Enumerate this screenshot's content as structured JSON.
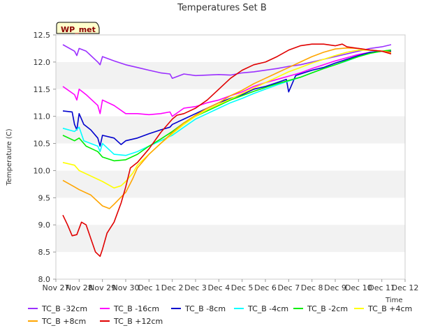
{
  "chart_data": {
    "type": "line",
    "title": "Temperatures Set B",
    "xlabel": "Time",
    "ylabel": "Temperature (C)",
    "badge": "WP_met",
    "x_tick_labels": [
      "Nov 27",
      "Nov 28",
      "Nov 29",
      "Nov 30",
      "Dec 1",
      "Dec 2",
      "Dec 3",
      "Dec 4",
      "Dec 5",
      "Dec 6",
      "Dec 7",
      "Dec 8",
      "Dec 9",
      "Dec 10",
      "Dec 11",
      "Dec 12"
    ],
    "xlim": [
      0,
      15
    ],
    "ylim": [
      8.0,
      12.5
    ],
    "y_ticks": [
      8.0,
      8.5,
      9.0,
      9.5,
      10.0,
      10.5,
      11.0,
      11.5,
      12.0,
      12.5
    ],
    "grid": "horizontal bands",
    "legend_position": "bottom",
    "series": [
      {
        "name": "TC_B -32cm",
        "color": "#9b30ff",
        "x": [
          0.3,
          0.8,
          0.9,
          1.0,
          1.3,
          1.8,
          1.9,
          2.0,
          2.5,
          3.0,
          3.5,
          4.0,
          4.5,
          4.9,
          5.0,
          5.5,
          6.0,
          6.5,
          7.0,
          7.5,
          8.0,
          8.5,
          9.0,
          9.5,
          10.0,
          10.5,
          11.0,
          11.5,
          12.0,
          12.5,
          13.0,
          13.5,
          14.0,
          14.4
        ],
        "y": [
          12.32,
          12.2,
          12.12,
          12.25,
          12.2,
          12.0,
          11.95,
          12.1,
          12.02,
          11.95,
          11.9,
          11.85,
          11.8,
          11.78,
          11.7,
          11.78,
          11.75,
          11.76,
          11.77,
          11.76,
          11.8,
          11.82,
          11.85,
          11.88,
          11.92,
          11.95,
          12.0,
          12.05,
          12.1,
          12.15,
          12.2,
          12.25,
          12.28,
          12.32
        ]
      },
      {
        "name": "TC_B -16cm",
        "color": "#ff00ff",
        "x": [
          0.3,
          0.8,
          0.9,
          1.0,
          1.3,
          1.8,
          1.9,
          2.0,
          2.5,
          3.0,
          3.5,
          4.0,
          4.5,
          4.9,
          5.0,
          5.5,
          6.0,
          6.5,
          7.0,
          7.5,
          8.0,
          8.5,
          9.0,
          9.5,
          10.0,
          10.5,
          11.0,
          11.5,
          12.0,
          12.5,
          13.0,
          13.5,
          14.0,
          14.4
        ],
        "y": [
          11.55,
          11.4,
          11.3,
          11.5,
          11.4,
          11.2,
          11.05,
          11.3,
          11.2,
          11.05,
          11.05,
          11.03,
          11.05,
          11.08,
          11.0,
          11.15,
          11.18,
          11.25,
          11.3,
          11.38,
          11.45,
          11.55,
          11.62,
          11.68,
          11.74,
          11.8,
          11.88,
          11.95,
          12.02,
          12.08,
          12.14,
          12.18,
          12.2,
          12.22
        ]
      },
      {
        "name": "TC_B -8cm",
        "color": "#0000cd",
        "x": [
          0.3,
          0.7,
          0.8,
          0.9,
          1.0,
          1.2,
          1.5,
          1.8,
          1.9,
          2.0,
          2.5,
          2.8,
          3.0,
          3.5,
          4.0,
          4.5,
          4.9,
          5.0,
          5.5,
          6.0,
          6.5,
          7.0,
          7.5,
          8.0,
          8.5,
          9.0,
          9.5,
          9.9,
          10.0,
          10.3,
          10.5,
          11.0,
          11.5,
          12.0,
          12.5,
          13.0,
          13.5,
          14.0,
          14.4
        ],
        "y": [
          11.1,
          11.08,
          10.85,
          10.75,
          11.05,
          10.85,
          10.75,
          10.6,
          10.45,
          10.65,
          10.6,
          10.48,
          10.55,
          10.6,
          10.68,
          10.75,
          10.8,
          10.85,
          10.95,
          11.05,
          11.15,
          11.25,
          11.33,
          11.4,
          11.5,
          11.55,
          11.62,
          11.68,
          11.45,
          11.75,
          11.78,
          11.85,
          11.9,
          11.98,
          12.05,
          12.12,
          12.18,
          12.2,
          12.2
        ]
      },
      {
        "name": "TC_B -4cm",
        "color": "#00ffff",
        "x": [
          0.3,
          0.8,
          1.0,
          1.2,
          1.5,
          1.8,
          1.9,
          2.0,
          2.5,
          3.0,
          3.5,
          4.0,
          4.5,
          5.0,
          5.5,
          6.0,
          6.5,
          7.0,
          7.5,
          8.0,
          8.5,
          9.0,
          9.5,
          10.0,
          10.5,
          11.0,
          11.5,
          12.0,
          12.5,
          13.0,
          13.5,
          14.0,
          14.4
        ],
        "y": [
          10.78,
          10.72,
          10.8,
          10.55,
          10.5,
          10.45,
          10.35,
          10.5,
          10.3,
          10.28,
          10.35,
          10.45,
          10.55,
          10.65,
          10.8,
          10.95,
          11.05,
          11.15,
          11.25,
          11.33,
          11.42,
          11.5,
          11.58,
          11.65,
          11.72,
          11.8,
          11.88,
          11.95,
          12.02,
          12.1,
          12.16,
          12.2,
          12.22
        ]
      },
      {
        "name": "TC_B -2cm",
        "color": "#00ee00",
        "x": [
          0.3,
          0.8,
          1.0,
          1.3,
          1.8,
          2.0,
          2.5,
          3.0,
          3.5,
          4.0,
          4.5,
          5.0,
          5.5,
          6.0,
          6.5,
          7.0,
          7.5,
          8.0,
          8.5,
          9.0,
          9.5,
          10.0,
          10.5,
          11.0,
          11.5,
          12.0,
          12.5,
          13.0,
          13.5,
          14.0,
          14.4
        ],
        "y": [
          10.65,
          10.55,
          10.6,
          10.45,
          10.35,
          10.25,
          10.18,
          10.2,
          10.3,
          10.45,
          10.58,
          10.72,
          10.88,
          11.0,
          11.1,
          11.2,
          11.3,
          11.38,
          11.46,
          11.53,
          11.6,
          11.66,
          11.72,
          11.8,
          11.88,
          11.95,
          12.03,
          12.1,
          12.16,
          12.2,
          12.22
        ]
      },
      {
        "name": "TC_B +4cm",
        "color": "#ffff00",
        "x": [
          0.3,
          0.8,
          1.0,
          1.5,
          2.0,
          2.5,
          2.8,
          3.0,
          3.3,
          3.5,
          4.0,
          4.5,
          5.0,
          5.5,
          6.0,
          6.5,
          7.0,
          7.5,
          8.0,
          8.5,
          9.0,
          9.5,
          10.0,
          10.5,
          11.0,
          11.5,
          12.0,
          12.5,
          13.0,
          13.5,
          14.0,
          14.4
        ],
        "y": [
          10.15,
          10.1,
          10.0,
          9.9,
          9.8,
          9.68,
          9.72,
          9.8,
          9.95,
          10.1,
          10.3,
          10.5,
          10.68,
          10.85,
          11.0,
          11.12,
          11.22,
          11.32,
          11.42,
          11.52,
          11.62,
          11.72,
          11.82,
          11.9,
          11.98,
          12.05,
          12.12,
          12.18,
          12.22,
          12.22,
          12.2,
          12.18
        ]
      },
      {
        "name": "TC_B +8cm",
        "color": "#ffa500",
        "x": [
          0.3,
          0.8,
          1.0,
          1.5,
          2.0,
          2.3,
          2.5,
          3.0,
          3.3,
          3.5,
          4.0,
          4.5,
          5.0,
          5.5,
          6.0,
          6.5,
          7.0,
          7.5,
          8.0,
          8.5,
          9.0,
          9.5,
          10.0,
          10.5,
          11.0,
          11.5,
          12.0,
          12.5,
          13.0,
          13.5,
          14.0,
          14.4
        ],
        "y": [
          9.82,
          9.7,
          9.65,
          9.55,
          9.35,
          9.3,
          9.38,
          9.6,
          9.85,
          10.05,
          10.3,
          10.5,
          10.7,
          10.88,
          11.02,
          11.15,
          11.25,
          11.38,
          11.48,
          11.6,
          11.7,
          11.8,
          11.9,
          12.0,
          12.1,
          12.18,
          12.24,
          12.26,
          12.25,
          12.22,
          12.2,
          12.18
        ]
      },
      {
        "name": "TC_B +12cm",
        "color": "#e00000",
        "x": [
          0.3,
          0.5,
          0.7,
          0.9,
          1.1,
          1.3,
          1.5,
          1.7,
          1.9,
          2.0,
          2.2,
          2.5,
          2.8,
          3.0,
          3.2,
          3.5,
          4.0,
          4.5,
          5.0,
          5.2,
          5.5,
          6.0,
          6.5,
          7.0,
          7.5,
          8.0,
          8.5,
          9.0,
          9.5,
          10.0,
          10.5,
          11.0,
          11.5,
          12.0,
          12.3,
          12.5,
          13.0,
          13.5,
          14.0,
          14.4
        ],
        "y": [
          9.18,
          9.0,
          8.8,
          8.82,
          9.05,
          9.0,
          8.75,
          8.5,
          8.42,
          8.55,
          8.85,
          9.05,
          9.4,
          9.7,
          10.05,
          10.15,
          10.4,
          10.7,
          10.95,
          11.02,
          11.05,
          11.15,
          11.3,
          11.5,
          11.7,
          11.85,
          11.95,
          12.0,
          12.1,
          12.22,
          12.3,
          12.33,
          12.33,
          12.3,
          12.33,
          12.28,
          12.25,
          12.22,
          12.2,
          12.15
        ]
      }
    ]
  }
}
